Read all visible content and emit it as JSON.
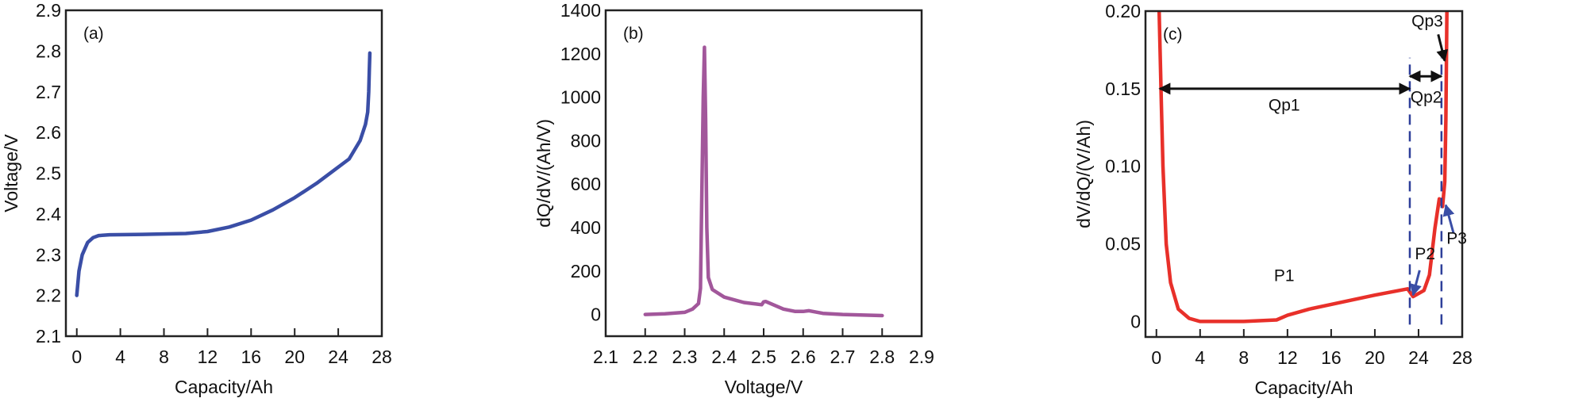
{
  "chart_data": [
    {
      "type": "line",
      "panel_label": "(a)",
      "xlabel": "Capacity/Ah",
      "ylabel": "Voltage/V",
      "xlim": [
        -1,
        28
      ],
      "ylim": [
        2.1,
        2.9
      ],
      "xticks": [
        "0",
        "4",
        "8",
        "12",
        "16",
        "20",
        "24",
        "28"
      ],
      "xtick_values": [
        0,
        4,
        8,
        12,
        16,
        20,
        24,
        28
      ],
      "yticks": [
        "2.1",
        "2.2",
        "2.3",
        "2.4",
        "2.5",
        "2.6",
        "2.7",
        "2.8",
        "2.9"
      ],
      "ytick_values": [
        2.1,
        2.2,
        2.3,
        2.4,
        2.5,
        2.6,
        2.7,
        2.8,
        2.9
      ],
      "grid": false,
      "series": [
        {
          "name": "Voltage",
          "color": "#3a4ea6",
          "x": [
            0,
            0.2,
            0.5,
            1,
            1.5,
            2,
            3,
            6,
            10,
            12,
            14,
            16,
            18,
            20,
            22,
            23.5,
            25,
            26,
            26.5,
            26.7,
            26.8,
            26.85,
            26.9
          ],
          "y": [
            2.2,
            2.26,
            2.3,
            2.33,
            2.342,
            2.347,
            2.349,
            2.35,
            2.352,
            2.357,
            2.368,
            2.385,
            2.41,
            2.44,
            2.475,
            2.505,
            2.535,
            2.58,
            2.62,
            2.65,
            2.7,
            2.75,
            2.795
          ]
        }
      ],
      "annotations": []
    },
    {
      "type": "line",
      "panel_label": "(b)",
      "xlabel": "Voltage/V",
      "ylabel": "dQ/dV/(Ah/V)",
      "xlim": [
        2.1,
        2.9
      ],
      "ylim": [
        -100,
        1400
      ],
      "xticks": [
        "2.1",
        "2.2",
        "2.3",
        "2.4",
        "2.5",
        "2.6",
        "2.7",
        "2.8",
        "2.9"
      ],
      "xtick_values": [
        2.1,
        2.2,
        2.3,
        2.4,
        2.5,
        2.6,
        2.7,
        2.8,
        2.9
      ],
      "yticks": [
        "0",
        "200",
        "400",
        "600",
        "800",
        "1000",
        "1200",
        "1400"
      ],
      "ytick_values": [
        0,
        200,
        400,
        600,
        800,
        1000,
        1200,
        1400
      ],
      "grid": false,
      "series": [
        {
          "name": "dQ/dV",
          "color": "#a2579b",
          "x": [
            2.2,
            2.25,
            2.3,
            2.32,
            2.335,
            2.34,
            2.343,
            2.347,
            2.35,
            2.353,
            2.356,
            2.36,
            2.37,
            2.4,
            2.45,
            2.495,
            2.5,
            2.505,
            2.55,
            2.58,
            2.6,
            2.615,
            2.65,
            2.7,
            2.8
          ],
          "y": [
            0,
            3,
            10,
            25,
            50,
            120,
            500,
            1000,
            1230,
            900,
            400,
            170,
            115,
            80,
            55,
            45,
            58,
            60,
            25,
            14,
            14,
            17,
            5,
            0,
            -5
          ]
        }
      ],
      "annotations": []
    },
    {
      "type": "line",
      "panel_label": "(c)",
      "xlabel": "Capacity/Ah",
      "ylabel": "dV/dQ/(V/Ah)",
      "xlim": [
        -1,
        28
      ],
      "ylim": [
        -0.01,
        0.2
      ],
      "xticks": [
        "0",
        "4",
        "8",
        "12",
        "16",
        "20",
        "24",
        "28"
      ],
      "xtick_values": [
        0,
        4,
        8,
        12,
        16,
        20,
        24,
        28
      ],
      "yticks": [
        "0",
        "0.05",
        "0.10",
        "0.15",
        "0.20"
      ],
      "ytick_values": [
        0,
        0.05,
        0.1,
        0.15,
        0.2
      ],
      "grid": false,
      "series": [
        {
          "name": "dV/dQ",
          "color": "#e8302a",
          "x": [
            0.25,
            0.35,
            0.45,
            0.6,
            0.9,
            1.3,
            2,
            3,
            4,
            8,
            11,
            12,
            14,
            16,
            20,
            23,
            23.5,
            24.5,
            25,
            25.5,
            25.9,
            26.2,
            26.4,
            26.5,
            26.6
          ],
          "y": [
            0.2,
            0.17,
            0.14,
            0.1,
            0.05,
            0.025,
            0.008,
            0.002,
            0,
            0,
            0.001,
            0.004,
            0.008,
            0.011,
            0.017,
            0.021,
            0.016,
            0.02,
            0.03,
            0.06,
            0.079,
            0.074,
            0.09,
            0.13,
            0.2
          ]
        }
      ],
      "dashed_lines": {
        "color": "#2e3f9a",
        "x": [
          23.2,
          26.1
        ],
        "y_from": -0.002,
        "y_to": 0.17
      },
      "arrows": [
        {
          "name": "qp1-arrow",
          "color": "#111",
          "both": true,
          "from": [
            0.3,
            0.15
          ],
          "to": [
            23.2,
            0.15
          ]
        },
        {
          "name": "qp2-arrow",
          "color": "#111",
          "both": true,
          "from": [
            23.2,
            0.158
          ],
          "to": [
            26.1,
            0.158
          ]
        },
        {
          "name": "qp3-arrow",
          "color": "#111",
          "both": false,
          "from": [
            25.8,
            0.185
          ],
          "to": [
            26.4,
            0.168
          ]
        },
        {
          "name": "p2-arrow",
          "color": "#3a4ea6",
          "both": false,
          "from": [
            24.1,
            0.033
          ],
          "to": [
            23.5,
            0.017
          ]
        },
        {
          "name": "p3-arrow",
          "color": "#3a4ea6",
          "both": false,
          "from": [
            27.2,
            0.057
          ],
          "to": [
            26.5,
            0.075
          ]
        }
      ],
      "annotations": [
        {
          "text": "Qp1",
          "x": 11.7,
          "y": 0.136
        },
        {
          "text": "Qp2",
          "x": 24.7,
          "y": 0.141
        },
        {
          "text": "Qp3",
          "x": 24.8,
          "y": 0.19
        },
        {
          "text": "P1",
          "x": 11.7,
          "y": 0.026
        },
        {
          "text": "P2",
          "x": 24.6,
          "y": 0.04
        },
        {
          "text": "P3",
          "x": 27.5,
          "y": 0.05
        }
      ]
    }
  ]
}
